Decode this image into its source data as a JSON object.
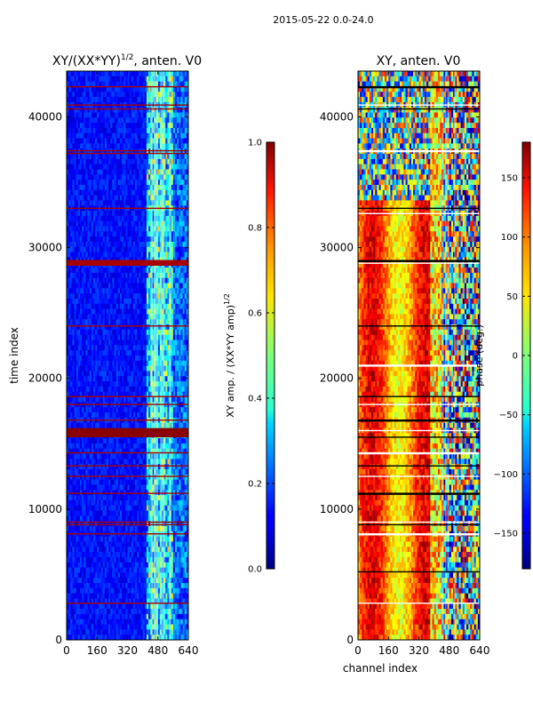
{
  "suptitle": "2015-05-22 0.0-24.0",
  "chart_data": [
    {
      "type": "heatmap",
      "title": "XY/(XX*YY)^1/2, anten. V0",
      "title_main": "XY/(XX*YY)",
      "title_exp": "1/2",
      "title_suffix": ", anten. V0",
      "xlabel": "",
      "ylabel": "time index",
      "xlim": [
        0,
        640
      ],
      "ylim": [
        0,
        43500
      ],
      "xticks": [
        0,
        160,
        320,
        480,
        640
      ],
      "yticks": [
        0,
        10000,
        20000,
        30000,
        40000
      ],
      "colorbar": {
        "label": "XY amp. / (XX*YY amp)^1/2",
        "label_main": "XY amp. / (XX*YY amp)",
        "label_exp": "1/2",
        "range": [
          0.0,
          1.0
        ],
        "ticks": [
          0.0,
          0.2,
          0.4,
          0.6,
          0.8,
          1.0
        ],
        "tick_labels": [
          "0.0",
          "0.2",
          "0.4",
          "0.6",
          "0.8",
          "1.0"
        ]
      }
    },
    {
      "type": "heatmap",
      "title": "XY, anten. V0",
      "xlabel": "channel index",
      "ylabel": "",
      "xlim": [
        0,
        640
      ],
      "ylim": [
        0,
        43500
      ],
      "xticks": [
        0,
        160,
        320,
        480,
        640
      ],
      "yticks": [
        0,
        10000,
        20000,
        30000,
        40000
      ],
      "colorbar": {
        "label": "phase (deg.)",
        "range": [
          -180,
          180
        ],
        "ticks": [
          -150,
          -100,
          -50,
          0,
          50,
          100,
          150
        ],
        "tick_labels": [
          "−150",
          "−100",
          "−50",
          "0",
          "50",
          "100",
          "150"
        ]
      }
    }
  ]
}
